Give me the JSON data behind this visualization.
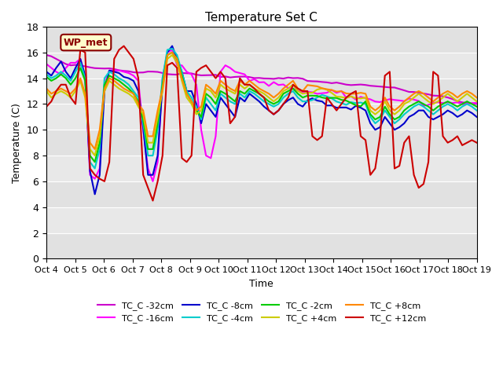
{
  "title": "Temperature Set C",
  "xlabel": "Time",
  "ylabel": "Temperature (C)",
  "ylim": [
    0,
    18
  ],
  "yticks": [
    0,
    2,
    4,
    6,
    8,
    10,
    12,
    14,
    16,
    18
  ],
  "x_labels": [
    "Oct 4",
    "Oct 5",
    "Oct 6",
    "Oct 7",
    "Oct 8",
    "Oct 9",
    "Oct 10",
    "Oct 11",
    "Oct 12",
    "Oct 13",
    "Oct 14",
    "Oct 15",
    "Oct 16",
    "Oct 17",
    "Oct 18",
    "Oct 19"
  ],
  "annotation_text": "WP_met",
  "annotation_color": "#8B0000",
  "annotation_bg": "#FFFFCC",
  "background_color": "#E8E8E8",
  "plot_bg": "#E8E8E8",
  "series": [
    {
      "label": "TC_C -32cm",
      "color": "#CC00CC",
      "lw": 1.5
    },
    {
      "label": "TC_C -16cm",
      "color": "#FF00FF",
      "lw": 1.5
    },
    {
      "label": "TC_C -8cm",
      "color": "#0000CC",
      "lw": 1.5
    },
    {
      "label": "TC_C -4cm",
      "color": "#00CCCC",
      "lw": 1.5
    },
    {
      "label": "TC_C -2cm",
      "color": "#00CC00",
      "lw": 1.5
    },
    {
      "label": "TC_C +4cm",
      "color": "#CCCC00",
      "lw": 1.5
    },
    {
      "label": "TC_C +8cm",
      "color": "#FF8800",
      "lw": 1.5
    },
    {
      "label": "TC_C +12cm",
      "color": "#CC0000",
      "lw": 1.5
    }
  ]
}
